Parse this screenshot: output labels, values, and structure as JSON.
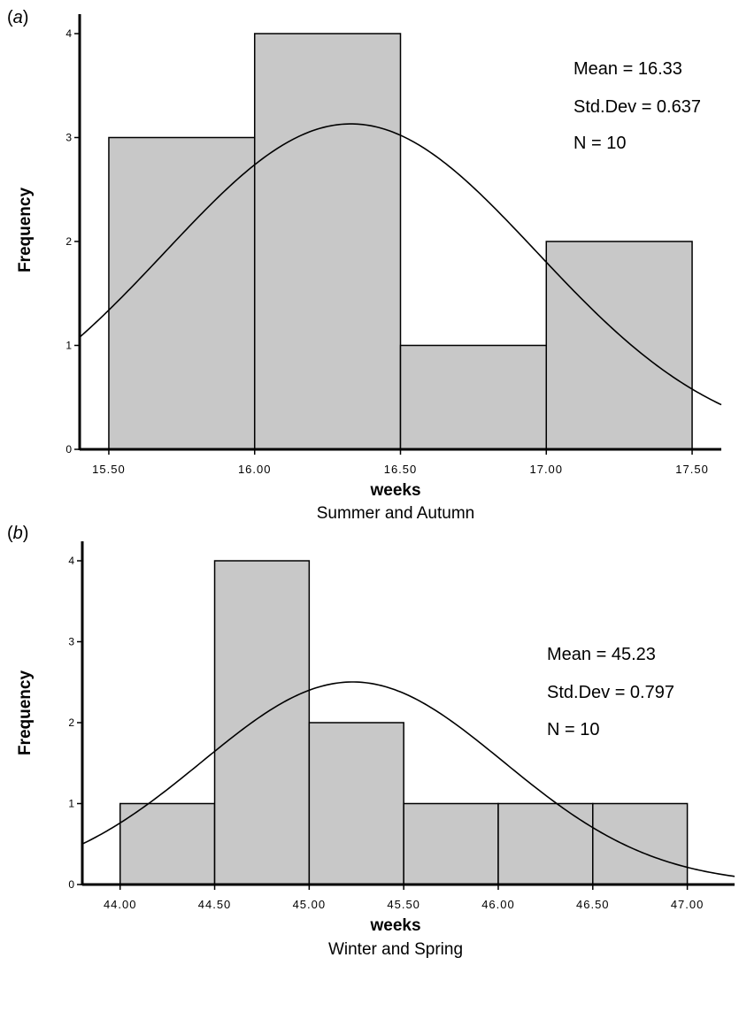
{
  "chart_data": [
    {
      "type": "bar",
      "panel_label": "a",
      "xlabel": "weeks",
      "subtitle": "Summer and Autumn",
      "ylabel": "Frequency",
      "xlim": [
        15.4,
        17.6
      ],
      "ylim": [
        0,
        4
      ],
      "x_ticks": [
        "15.50",
        "16.00",
        "16.50",
        "17.00",
        "17.50"
      ],
      "x_tick_values": [
        15.5,
        16.0,
        16.5,
        17.0,
        17.5
      ],
      "y_ticks": [
        "0",
        "1",
        "2",
        "3",
        "4"
      ],
      "bins": [
        [
          15.5,
          16.0
        ],
        [
          16.0,
          16.5
        ],
        [
          16.5,
          17.0
        ],
        [
          17.0,
          17.5
        ]
      ],
      "values": [
        3,
        4,
        1,
        2
      ],
      "normal_curve": {
        "mean": 16.33,
        "sd": 0.637,
        "n": 10,
        "bin_width": 0.5
      },
      "stats": [
        "Mean = 16.33",
        "Std.Dev = 0.637",
        "N = 10"
      ],
      "bar_fill": "#c8c8c8",
      "grid": false
    },
    {
      "type": "bar",
      "panel_label": "b",
      "xlabel": "weeks",
      "subtitle": "Winter and Spring",
      "ylabel": "Frequency",
      "xlim": [
        43.8,
        47.25
      ],
      "ylim": [
        0,
        4
      ],
      "x_ticks": [
        "44.00",
        "44.50",
        "45.00",
        "45.50",
        "46.00",
        "46.50",
        "47.00"
      ],
      "x_tick_values": [
        44.0,
        44.5,
        45.0,
        45.5,
        46.0,
        46.5,
        47.0
      ],
      "y_ticks": [
        "0",
        "1",
        "2",
        "3",
        "4"
      ],
      "bins": [
        [
          44.0,
          44.5
        ],
        [
          44.5,
          45.0
        ],
        [
          45.0,
          45.5
        ],
        [
          45.5,
          46.0
        ],
        [
          46.0,
          46.5
        ],
        [
          46.5,
          47.0
        ]
      ],
      "values": [
        1,
        4,
        2,
        1,
        1,
        1
      ],
      "normal_curve": {
        "mean": 45.23,
        "sd": 0.797,
        "n": 10,
        "bin_width": 0.5
      },
      "stats": [
        "Mean = 45.23",
        "Std.Dev = 0.797",
        "N = 10"
      ],
      "bar_fill": "#c8c8c8",
      "grid": false
    }
  ]
}
